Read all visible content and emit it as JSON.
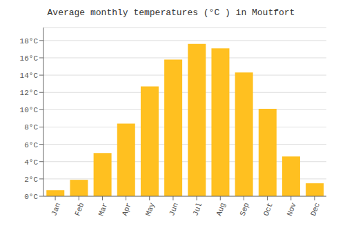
{
  "chart_data": {
    "type": "bar",
    "title": "Average monthly temperatures (°C ) in Moutfort",
    "categories": [
      "Jan",
      "Feb",
      "Mar",
      "Apr",
      "May",
      "Jun",
      "Jul",
      "Aug",
      "Sep",
      "Oct",
      "Nov",
      "Dec"
    ],
    "values": [
      0.7,
      1.9,
      5.0,
      8.4,
      12.7,
      15.8,
      17.6,
      17.1,
      14.3,
      10.1,
      4.6,
      1.5
    ],
    "color": "#FFC020",
    "ylim": [
      0,
      19.5
    ],
    "yticks": [
      {
        "value": 0,
        "label": "0°C"
      },
      {
        "value": 2,
        "label": "2°C"
      },
      {
        "value": 4,
        "label": "4°C"
      },
      {
        "value": 6,
        "label": "6°C"
      },
      {
        "value": 8,
        "label": "8°C"
      },
      {
        "value": 10,
        "label": "10°C"
      },
      {
        "value": 12,
        "label": "12°C"
      },
      {
        "value": 14,
        "label": "14°C"
      },
      {
        "value": 16,
        "label": "16°C"
      },
      {
        "value": 18,
        "label": "18°C"
      }
    ],
    "grid": true
  }
}
